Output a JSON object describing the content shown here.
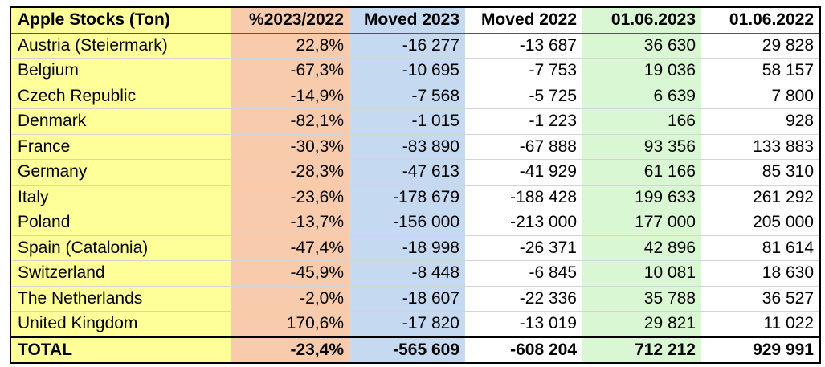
{
  "table": {
    "headers": [
      "Apple Stocks (Ton)",
      "%2023/2022",
      "Moved 2023",
      "Moved 2022",
      "01.06.2023",
      "01.06.2022"
    ],
    "rows": [
      [
        "Austria (Steiermark)",
        "22,8%",
        "-16 277",
        "-13 687",
        "36 630",
        "29 828"
      ],
      [
        "Belgium",
        "-67,3%",
        "-10 695",
        "-7 753",
        "19 036",
        "58 157"
      ],
      [
        "Czech Republic",
        "-14,9%",
        "-7 568",
        "-5 725",
        "6 639",
        "7 800"
      ],
      [
        "Denmark",
        "-82,1%",
        "-1 015",
        "-1 223",
        "166",
        "928"
      ],
      [
        "France",
        "-30,3%",
        "-83 890",
        "-67 888",
        "93 356",
        "133 883"
      ],
      [
        "Germany",
        "-28,3%",
        "-47 613",
        "-41 929",
        "61 166",
        "85 310"
      ],
      [
        "Italy",
        "-23,6%",
        "-178 679",
        "-188 428",
        "199 633",
        "261 292"
      ],
      [
        "Poland",
        "-13,7%",
        "-156 000",
        "-213 000",
        "177 000",
        "205 000"
      ],
      [
        "Spain (Catalonia)",
        "-47,4%",
        "-18 998",
        "-26 371",
        "42 896",
        "81 614"
      ],
      [
        "Switzerland",
        "-45,9%",
        "-8 448",
        "-6 845",
        "10 081",
        "18 630"
      ],
      [
        "The Netherlands",
        "-2,0%",
        "-18 607",
        "-22 336",
        "35 788",
        "36 527"
      ],
      [
        "United Kingdom",
        "170,6%",
        "-17 820",
        "-13 019",
        "29 821",
        "11 022"
      ]
    ],
    "total": [
      "TOTAL",
      "-23,4%",
      "-565 609",
      "-608 204",
      "712 212",
      "929 991"
    ]
  },
  "colors": {
    "col_name": "#ffff99",
    "col_pct": "#f8cbad",
    "col_moved_2023": "#c5d9f1",
    "col_moved_2022": "#ffffff",
    "col_0106_2023": "#d9f7d2",
    "col_0106_2022": "#ffffff"
  }
}
